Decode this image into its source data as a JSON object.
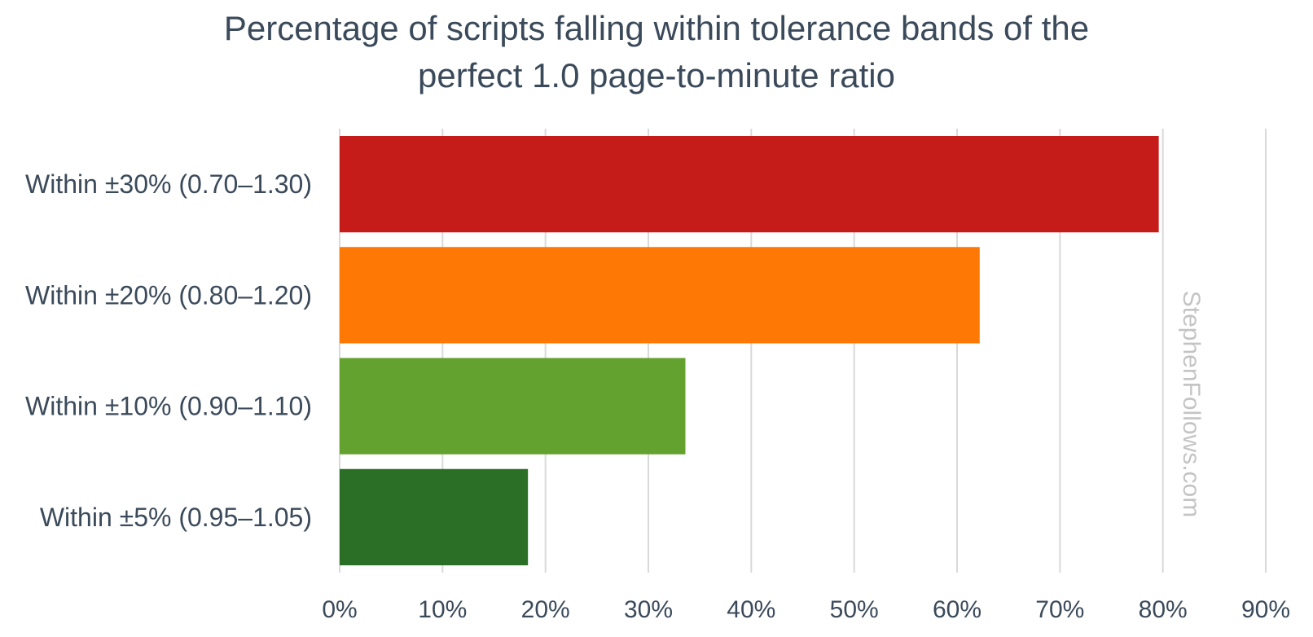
{
  "chart_data": {
    "type": "bar",
    "orientation": "horizontal",
    "title_lines": [
      "Percentage of scripts falling within tolerance bands of the",
      "perfect 1.0 page-to-minute ratio"
    ],
    "categories": [
      "Within ±30% (0.70–1.30)",
      "Within ±20% (0.80–1.20)",
      "Within ±10% (0.90–1.10)",
      "Within ±5% (0.95–1.05)"
    ],
    "values": [
      79.6,
      62.2,
      33.6,
      18.3
    ],
    "colors": [
      "#c51c19",
      "#fd7804",
      "#63a22e",
      "#2b6f26"
    ],
    "xlim": [
      0,
      90
    ],
    "x_ticks": [
      0,
      10,
      20,
      30,
      40,
      50,
      60,
      70,
      80,
      90
    ],
    "x_tick_labels": [
      "0%",
      "10%",
      "20%",
      "30%",
      "40%",
      "50%",
      "60%",
      "70%",
      "80%",
      "90%"
    ],
    "xlabel": "",
    "ylabel": "",
    "grid": "vertical",
    "legend": "none"
  },
  "watermark": "StephenFollows.com"
}
